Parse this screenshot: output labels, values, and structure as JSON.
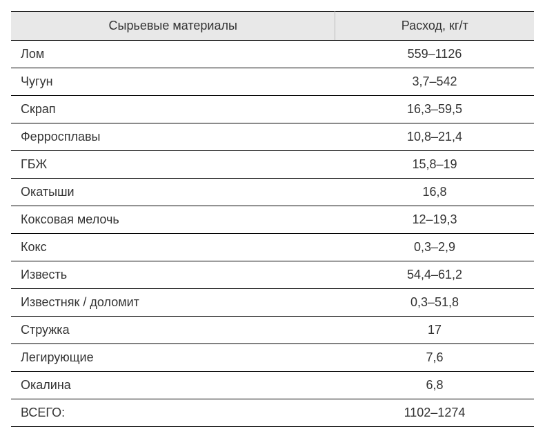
{
  "table": {
    "columns": [
      {
        "label": "Сырьевые материалы",
        "width_pct": 62,
        "align": "left"
      },
      {
        "label": "Расход, кг/т",
        "width_pct": 38,
        "align": "center"
      }
    ],
    "rows": [
      {
        "material": "Лом",
        "value": "559–1126"
      },
      {
        "material": "Чугун",
        "value": "3,7–542"
      },
      {
        "material": "Скрап",
        "value": "16,3–59,5"
      },
      {
        "material": "Ферросплавы",
        "value": "10,8–21,4"
      },
      {
        "material": "ГБЖ",
        "value": "15,8–19"
      },
      {
        "material": "Окатыши",
        "value": "16,8"
      },
      {
        "material": "Коксовая мелочь",
        "value": "12–19,3"
      },
      {
        "material": "Кокс",
        "value": "0,3–2,9"
      },
      {
        "material": "Известь",
        "value": "54,4–61,2"
      },
      {
        "material": "Известняк / доломит",
        "value": "0,3–51,8"
      },
      {
        "material": "Стружка",
        "value": "17"
      },
      {
        "material": "Легирующие",
        "value": "7,6"
      },
      {
        "material": "Окалина",
        "value": "6,8"
      },
      {
        "material": "ВСЕГО:",
        "value": "1102–1274"
      }
    ],
    "header_bg": "#e8e8e8",
    "border_color": "#000000",
    "header_divider_color": "#bbbbbb",
    "text_color": "#333333",
    "font_size_pt": 13,
    "background_color": "#ffffff"
  }
}
